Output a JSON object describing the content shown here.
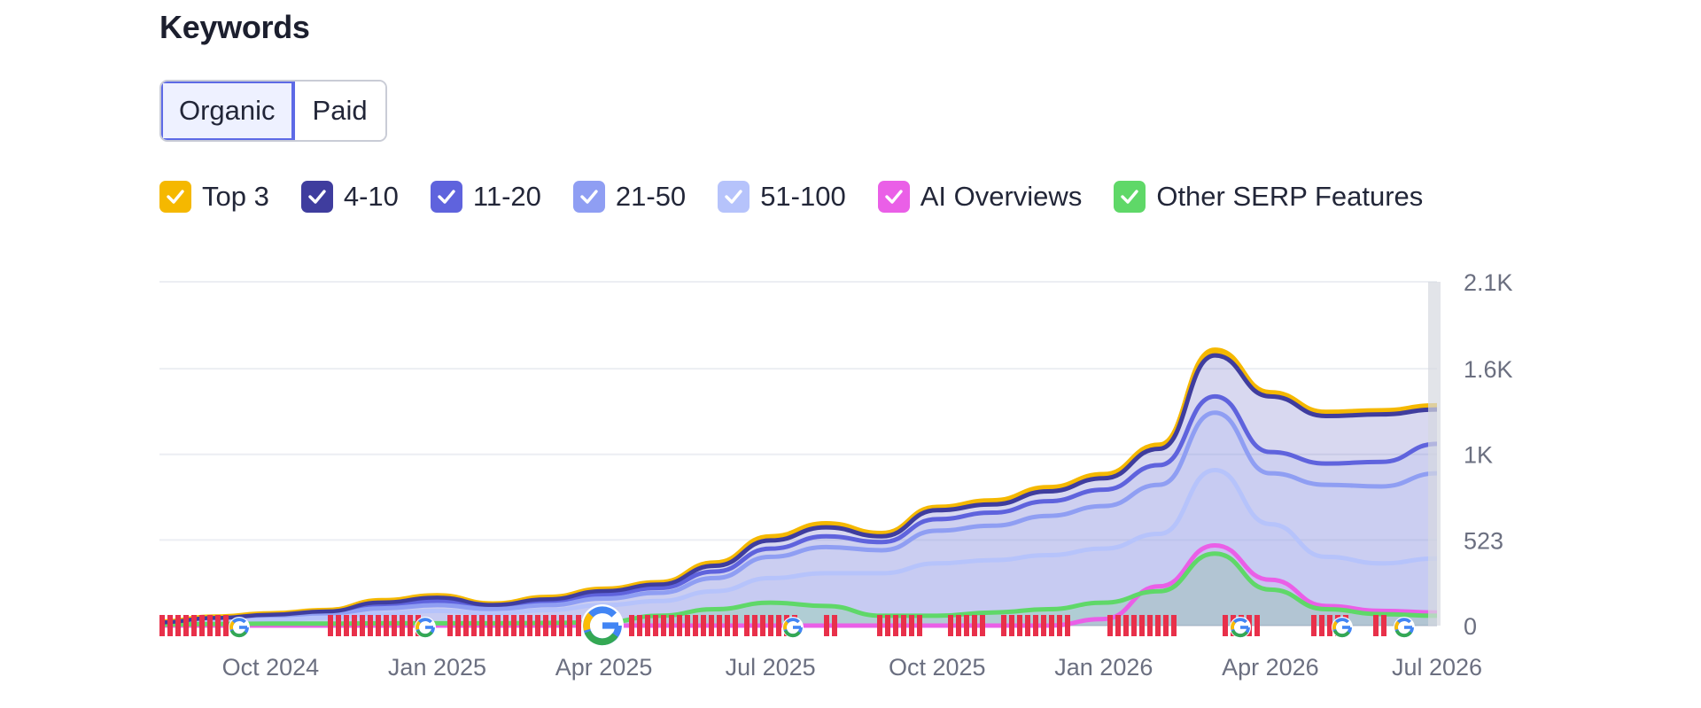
{
  "header": {
    "title": "Keywords"
  },
  "toggle": {
    "options": [
      "Organic",
      "Paid"
    ],
    "selected": "Organic"
  },
  "legend": [
    {
      "label": "Top 3",
      "color": "#f5b800",
      "checked": true
    },
    {
      "label": "4-10",
      "color": "#3f3d9e",
      "checked": true
    },
    {
      "label": "11-20",
      "color": "#5f63dd",
      "checked": true
    },
    {
      "label": "21-50",
      "color": "#8f9ef3",
      "checked": true
    },
    {
      "label": "51-100",
      "color": "#b6c3fb",
      "checked": true
    },
    {
      "label": "AI Overviews",
      "color": "#ea5fe7",
      "checked": true
    },
    {
      "label": "Other SERP Features",
      "color": "#5fd868",
      "checked": true
    }
  ],
  "chart_data": {
    "type": "area",
    "x": [
      "2024-08",
      "2024-09",
      "2024-10",
      "2024-11",
      "2024-12",
      "2025-01",
      "2025-02",
      "2025-03",
      "2025-04",
      "2025-05",
      "2025-06",
      "2025-07",
      "2025-08",
      "2025-09",
      "2025-10",
      "2025-11",
      "2025-12",
      "2026-01",
      "2026-02",
      "2026-03",
      "2026-04",
      "2026-05",
      "2026-06",
      "2026-07"
    ],
    "x_ticks": [
      "Oct 2024",
      "Jan 2025",
      "Apr 2025",
      "Jul 2025",
      "Oct 2025",
      "Jan 2026",
      "Apr 2026",
      "Jul 2026"
    ],
    "y_ticks": [
      "0",
      "523",
      "1K",
      "1.6K",
      "2.1K"
    ],
    "ylim": [
      0,
      2100
    ],
    "grid": true,
    "series": [
      {
        "name": "Top 3",
        "color": "#f5b800",
        "values": [
          20,
          50,
          70,
          90,
          150,
          180,
          130,
          170,
          220,
          260,
          380,
          540,
          620,
          560,
          720,
          760,
          840,
          920,
          1100,
          1680,
          1420,
          1300,
          1310,
          1340
        ]
      },
      {
        "name": "4-10",
        "color": "#3f3d9e",
        "values": [
          18,
          45,
          65,
          85,
          140,
          170,
          125,
          160,
          210,
          250,
          365,
          520,
          600,
          545,
          705,
          740,
          820,
          900,
          1080,
          1650,
          1400,
          1280,
          1290,
          1320
        ]
      },
      {
        "name": "11-20",
        "color": "#5f63dd",
        "values": [
          15,
          40,
          58,
          78,
          125,
          150,
          115,
          145,
          190,
          230,
          330,
          470,
          545,
          510,
          650,
          690,
          760,
          830,
          980,
          1400,
          1060,
          990,
          1000,
          1110
        ]
      },
      {
        "name": "21-50",
        "color": "#8f9ef3",
        "values": [
          12,
          32,
          48,
          65,
          105,
          125,
          100,
          125,
          165,
          200,
          290,
          420,
          480,
          460,
          580,
          610,
          670,
          730,
          860,
          1300,
          930,
          860,
          850,
          930
        ]
      },
      {
        "name": "51-100",
        "color": "#b6c3fb",
        "values": [
          8,
          22,
          35,
          48,
          75,
          90,
          75,
          95,
          125,
          150,
          210,
          290,
          320,
          320,
          380,
          400,
          430,
          470,
          560,
          950,
          620,
          420,
          380,
          410
        ]
      },
      {
        "name": "AI Overviews",
        "color": "#ea5fe7",
        "values": [
          0,
          0,
          0,
          0,
          0,
          0,
          0,
          0,
          0,
          0,
          0,
          0,
          0,
          0,
          0,
          0,
          0,
          40,
          240,
          490,
          280,
          120,
          90,
          80
        ]
      },
      {
        "name": "Other SERP Features",
        "color": "#5fd868",
        "values": [
          6,
          10,
          12,
          12,
          14,
          14,
          14,
          16,
          20,
          60,
          100,
          140,
          120,
          60,
          60,
          80,
          100,
          140,
          210,
          440,
          220,
          100,
          70,
          60
        ]
      }
    ]
  }
}
